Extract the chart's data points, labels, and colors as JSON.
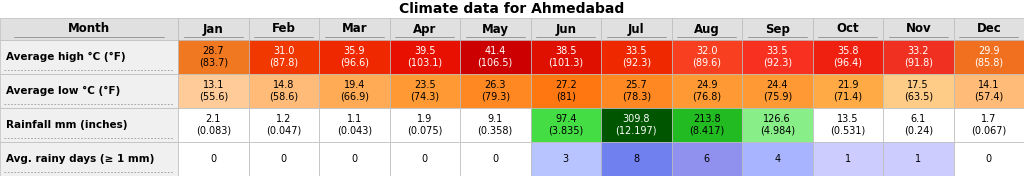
{
  "title": "Climate data for Ahmedabad",
  "columns": [
    "Month",
    "Jan",
    "Feb",
    "Mar",
    "Apr",
    "May",
    "Jun",
    "Jul",
    "Aug",
    "Sep",
    "Oct",
    "Nov",
    "Dec"
  ],
  "rows": [
    {
      "label": "Average high °C (°F)",
      "values": [
        "28.7\n(83.7)",
        "31.0\n(87.8)",
        "35.9\n(96.6)",
        "39.5\n(103.1)",
        "41.4\n(106.5)",
        "38.5\n(101.3)",
        "33.5\n(92.3)",
        "32.0\n(89.6)",
        "33.5\n(92.3)",
        "35.8\n(96.4)",
        "33.2\n(91.8)",
        "29.9\n(85.8)"
      ],
      "colors": [
        "#f07820",
        "#f03800",
        "#f02800",
        "#e81000",
        "#cc0000",
        "#e01000",
        "#f02800",
        "#f84020",
        "#f83020",
        "#f02010",
        "#f03020",
        "#f07020"
      ],
      "text_colors": [
        "#000000",
        "#ffffff",
        "#ffffff",
        "#ffffff",
        "#ffffff",
        "#ffffff",
        "#ffffff",
        "#ffffff",
        "#ffffff",
        "#ffffff",
        "#ffffff",
        "#ffffff"
      ]
    },
    {
      "label": "Average low °C (°F)",
      "values": [
        "13.1\n(55.6)",
        "14.8\n(58.6)",
        "19.4\n(66.9)",
        "23.5\n(74.3)",
        "26.3\n(79.3)",
        "27.2\n(81)",
        "25.7\n(78.3)",
        "24.9\n(76.8)",
        "24.4\n(75.9)",
        "21.9\n(71.4)",
        "17.5\n(63.5)",
        "14.1\n(57.4)"
      ],
      "colors": [
        "#ffcc99",
        "#ffbb77",
        "#ffaa55",
        "#ff9933",
        "#ff8822",
        "#ff7711",
        "#ff8822",
        "#ff9933",
        "#ff9933",
        "#ffaa44",
        "#ffcc88",
        "#ffbb77"
      ],
      "text_colors": [
        "#000000",
        "#000000",
        "#000000",
        "#000000",
        "#000000",
        "#000000",
        "#000000",
        "#000000",
        "#000000",
        "#000000",
        "#000000",
        "#000000"
      ]
    },
    {
      "label": "Rainfall mm (inches)",
      "values": [
        "2.1\n(0.083)",
        "1.2\n(0.047)",
        "1.1\n(0.043)",
        "1.9\n(0.075)",
        "9.1\n(0.358)",
        "97.4\n(3.835)",
        "309.8\n(12.197)",
        "213.8\n(8.417)",
        "126.6\n(4.984)",
        "13.5\n(0.531)",
        "6.1\n(0.24)",
        "1.7\n(0.067)"
      ],
      "colors": [
        "#ffffff",
        "#ffffff",
        "#ffffff",
        "#ffffff",
        "#ffffff",
        "#44dd44",
        "#005500",
        "#22bb22",
        "#88ee88",
        "#ffffff",
        "#ffffff",
        "#ffffff"
      ],
      "text_colors": [
        "#000000",
        "#000000",
        "#000000",
        "#000000",
        "#000000",
        "#000000",
        "#ffffff",
        "#000000",
        "#000000",
        "#000000",
        "#000000",
        "#000000"
      ]
    },
    {
      "label": "Avg. rainy days (≥ 1 mm)",
      "values": [
        "0",
        "0",
        "0",
        "0",
        "0",
        "3",
        "8",
        "6",
        "4",
        "1",
        "1",
        "0"
      ],
      "colors": [
        "#ffffff",
        "#ffffff",
        "#ffffff",
        "#ffffff",
        "#ffffff",
        "#b8c4ff",
        "#7080ee",
        "#9090ee",
        "#a8b4ff",
        "#ccccff",
        "#ccccff",
        "#ffffff"
      ],
      "text_colors": [
        "#000000",
        "#000000",
        "#000000",
        "#000000",
        "#000000",
        "#000000",
        "#000000",
        "#000000",
        "#000000",
        "#000000",
        "#000000",
        "#000000"
      ]
    }
  ],
  "header_bg": "#e0e0e0",
  "row_label_bg": "#f0f0f0",
  "border_color": "#bbbbbb",
  "title_fontsize": 10,
  "cell_fontsize": 7,
  "header_fontsize": 8.5,
  "label_fontsize": 7.5
}
